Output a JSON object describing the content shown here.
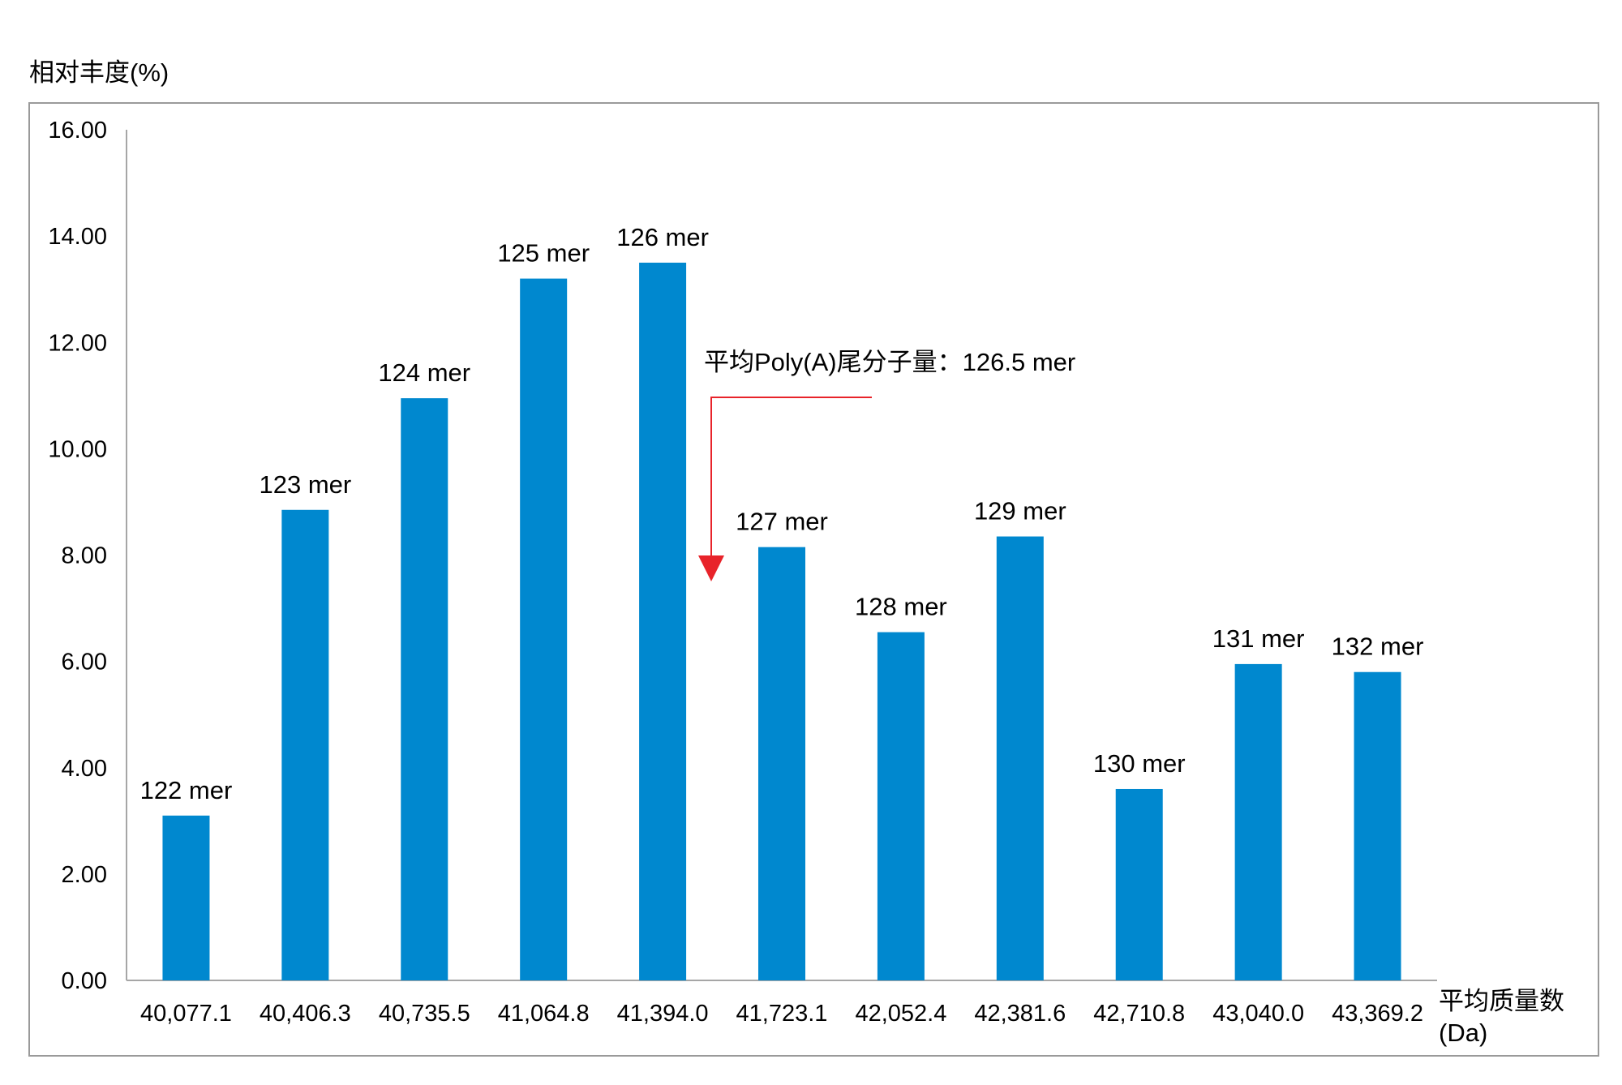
{
  "chart_data": {
    "type": "bar",
    "ylabel": "相对丰度(%)",
    "xlabel_line1": "平均质量数",
    "xlabel_line2": "(Da)",
    "ylim": [
      0,
      16
    ],
    "yticks": [
      "0.00",
      "2.00",
      "4.00",
      "6.00",
      "8.00",
      "10.00",
      "12.00",
      "14.00",
      "16.00"
    ],
    "categories": [
      "40,077.1",
      "40,406.3",
      "40,735.5",
      "41,064.8",
      "41,394.0",
      "41,723.1",
      "42,052.4",
      "42,381.6",
      "42,710.8",
      "43,040.0",
      "43,369.2"
    ],
    "values": [
      3.1,
      8.85,
      10.95,
      13.2,
      13.5,
      8.15,
      6.55,
      8.35,
      3.6,
      5.95,
      5.8
    ],
    "data_labels": [
      "122 mer",
      "123 mer",
      "124 mer",
      "125 mer",
      "126 mer",
      "127 mer",
      "128 mer",
      "129 mer",
      "130 mer",
      "131 mer",
      "132 mer"
    ],
    "annotation": "平均Poly(A)尾分子量：126.5 mer",
    "bar_color": "#0088cf",
    "annotation_color": "#e8232a",
    "grid": false
  }
}
